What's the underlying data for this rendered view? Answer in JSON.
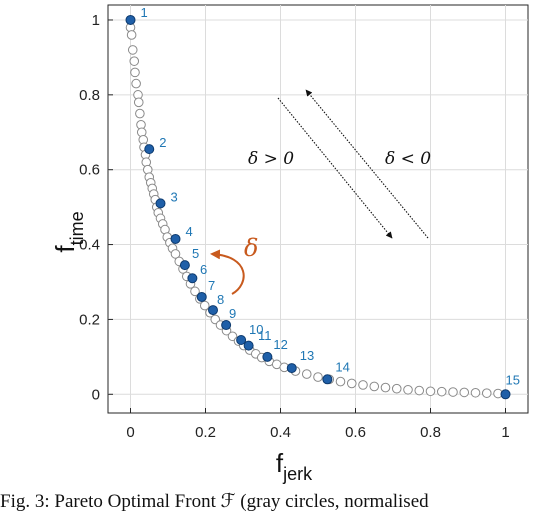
{
  "chart_data": {
    "type": "scatter",
    "xlabel_main": "f",
    "xlabel_sub": "jerk",
    "ylabel_main": "f",
    "ylabel_sub": "time",
    "xlim": [
      -0.06,
      1.06
    ],
    "ylim": [
      -0.05,
      1.04
    ],
    "xticks": [
      0,
      0.2,
      0.4,
      0.6,
      0.8,
      1
    ],
    "xtick_labels": [
      "0",
      "0.2",
      "0.4",
      "0.6",
      "0.8",
      "1"
    ],
    "yticks": [
      0,
      0.2,
      0.4,
      0.6,
      0.8,
      1
    ],
    "ytick_labels": [
      "0",
      "0.2",
      "0.4",
      "0.6",
      "0.8",
      "1"
    ],
    "grid": true,
    "series": [
      {
        "marker": "open-circle",
        "color": "#8a8a8a",
        "x": [
          0.0,
          0.003,
          0.006,
          0.01,
          0.012,
          0.015,
          0.02,
          0.022,
          0.025,
          0.028,
          0.03,
          0.034,
          0.036,
          0.04,
          0.042,
          0.046,
          0.05,
          0.054,
          0.058,
          0.062,
          0.066,
          0.07,
          0.074,
          0.08,
          0.086,
          0.092,
          0.098,
          0.105,
          0.112,
          0.12,
          0.13,
          0.14,
          0.15,
          0.16,
          0.172,
          0.185,
          0.198,
          0.212,
          0.226,
          0.24,
          0.256,
          0.272,
          0.288,
          0.302,
          0.318,
          0.334,
          0.35,
          0.37,
          0.39,
          0.41,
          0.44,
          0.47,
          0.5,
          0.53,
          0.56,
          0.59,
          0.62,
          0.65,
          0.68,
          0.71,
          0.74,
          0.77,
          0.8,
          0.83,
          0.86,
          0.89,
          0.92,
          0.95,
          0.98,
          1.0
        ],
        "y": [
          0.98,
          0.96,
          0.92,
          0.89,
          0.86,
          0.83,
          0.8,
          0.78,
          0.75,
          0.72,
          0.7,
          0.68,
          0.66,
          0.64,
          0.62,
          0.6,
          0.58,
          0.565,
          0.55,
          0.535,
          0.52,
          0.5,
          0.485,
          0.47,
          0.455,
          0.44,
          0.42,
          0.405,
          0.39,
          0.375,
          0.355,
          0.335,
          0.315,
          0.295,
          0.275,
          0.255,
          0.237,
          0.218,
          0.2,
          0.185,
          0.17,
          0.155,
          0.142,
          0.13,
          0.118,
          0.108,
          0.098,
          0.088,
          0.08,
          0.072,
          0.062,
          0.054,
          0.046,
          0.04,
          0.034,
          0.029,
          0.025,
          0.021,
          0.018,
          0.015,
          0.012,
          0.01,
          0.008,
          0.007,
          0.006,
          0.005,
          0.004,
          0.003,
          0.002,
          0.0
        ]
      },
      {
        "marker": "filled-circle",
        "color": "#1f5fa8",
        "labels": [
          "1",
          "2",
          "3",
          "4",
          "5",
          "6",
          "7",
          "8",
          "9",
          "10",
          "11",
          "12",
          "13",
          "14",
          "15"
        ],
        "x": [
          0.0,
          0.05,
          0.08,
          0.12,
          0.145,
          0.165,
          0.19,
          0.22,
          0.255,
          0.295,
          0.315,
          0.365,
          0.43,
          0.525,
          1.0
        ],
        "y": [
          1.0,
          0.655,
          0.51,
          0.415,
          0.345,
          0.31,
          0.26,
          0.225,
          0.185,
          0.145,
          0.13,
          0.1,
          0.07,
          0.04,
          0.0
        ]
      }
    ],
    "annotations": {
      "delta_symbol": "δ",
      "region_left": "δ > 0",
      "region_right": "δ < 0"
    }
  },
  "caption": "Fig. 3: Pareto Optimal Front ℱ (gray circles, normalised"
}
